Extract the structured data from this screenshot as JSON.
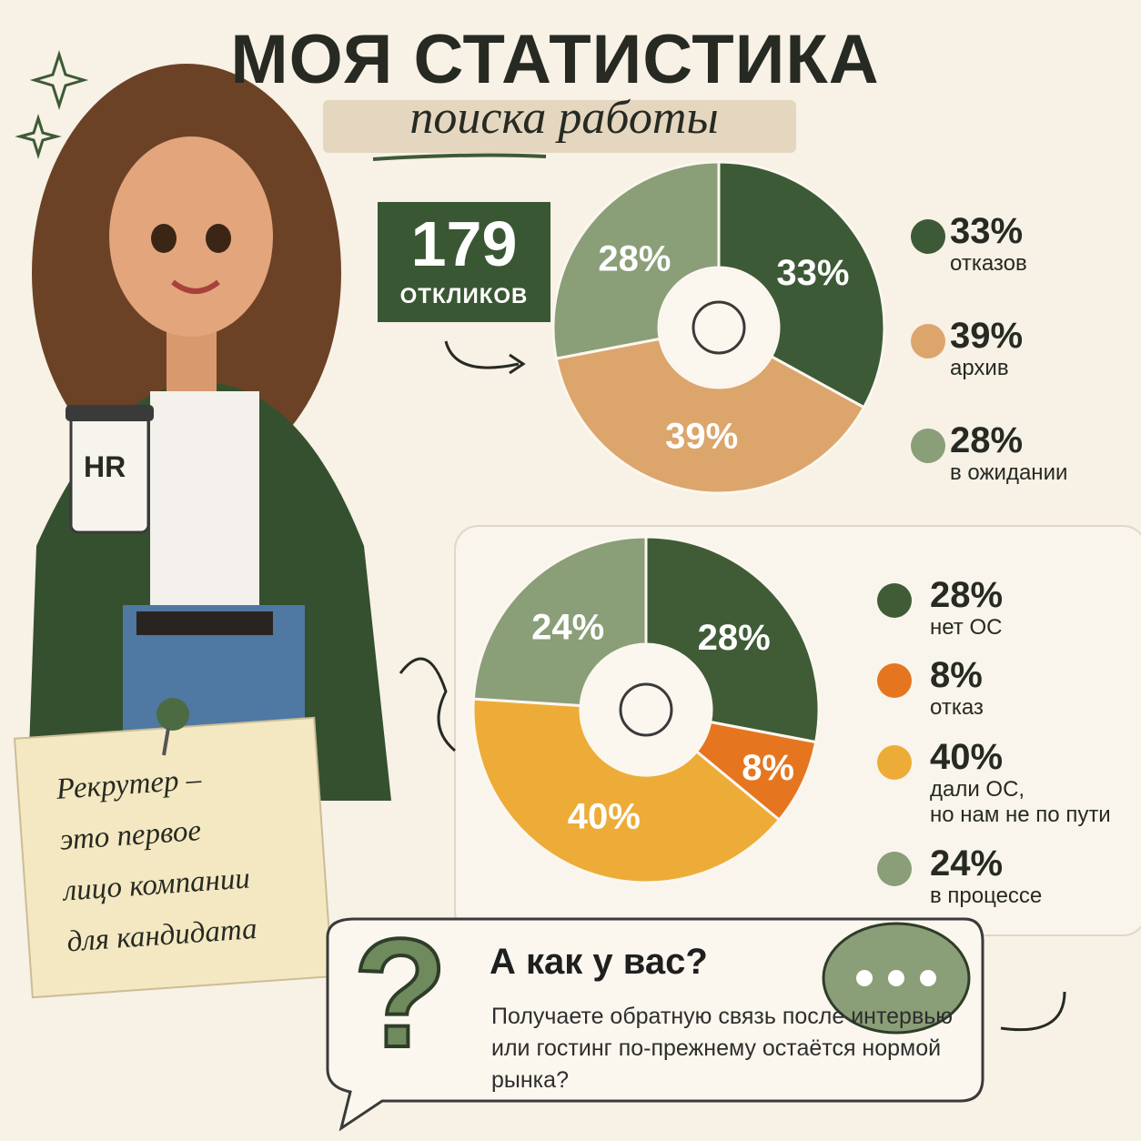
{
  "title": "МОЯ СТАТИСТИКА",
  "subtitle": "поиска работы",
  "responses_count": 179,
  "responses_label": "ОТКЛИКОВ",
  "cup_label": "HR",
  "note": "Рекрутер –\nэто первое\nлицо компании\nдля кандидата",
  "question": {
    "title": "А как у вас?",
    "text": "Получаете обратную связь после интервью или гостинг по-прежнему остаётся нормой рынка?"
  },
  "chart_data": [
    {
      "type": "pie",
      "categories": [
        "отказов",
        "архив",
        "в ожидании"
      ],
      "values": [
        33,
        39,
        28
      ],
      "value_labels": [
        "33%",
        "39%",
        "28%"
      ],
      "colors": [
        "#3d5a36",
        "#dca56c",
        "#8a9e78"
      ]
    },
    {
      "type": "pie",
      "categories": [
        "нет ОС",
        "отказ",
        "дали ОС,\nно нам не по пути",
        "в процессе"
      ],
      "values": [
        28,
        8,
        40,
        24
      ],
      "value_labels": [
        "28%",
        "8%",
        "40%",
        "24%"
      ],
      "colors": [
        "#3f5c37",
        "#e5761f",
        "#edac38",
        "#8a9e78"
      ]
    }
  ]
}
